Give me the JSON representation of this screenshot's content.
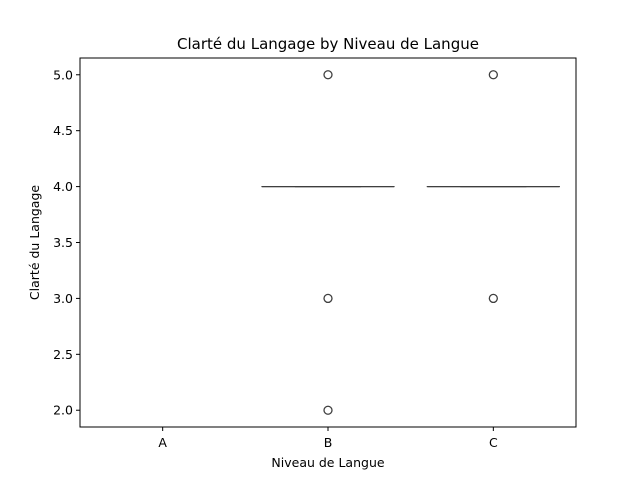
{
  "chart_data": {
    "type": "box",
    "title": "Clarté du Langage by Niveau de Langue",
    "xlabel": "Niveau de Langue",
    "ylabel": "Clarté du Langage",
    "categories": [
      "A",
      "B",
      "C"
    ],
    "ylim": [
      1.85,
      5.15
    ],
    "yticks": [
      "2.0",
      "2.5",
      "3.0",
      "3.5",
      "4.0",
      "4.5",
      "5.0"
    ],
    "grid": false,
    "series": [
      {
        "category": "A",
        "median": null,
        "q1": null,
        "q3": null,
        "outliers": []
      },
      {
        "category": "B",
        "median": 4.0,
        "q1": 4.0,
        "q3": 4.0,
        "whisker_low": 4.0,
        "whisker_high": 4.0,
        "outliers": [
          5.0,
          3.0,
          2.0
        ]
      },
      {
        "category": "C",
        "median": 4.0,
        "q1": 4.0,
        "q3": 4.0,
        "whisker_low": 4.0,
        "whisker_high": 4.0,
        "outliers": [
          5.0,
          3.0
        ]
      }
    ],
    "colors": {
      "box_line": "#3f3f3f",
      "outlier_edge": "#3f3f3f",
      "axis": "#000000"
    }
  }
}
